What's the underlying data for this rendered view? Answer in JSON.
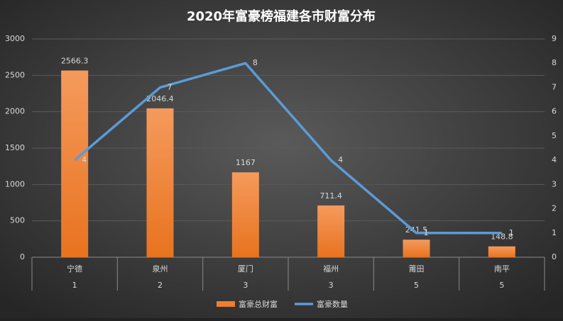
{
  "chart_data": {
    "type": "bar",
    "title": "2020年富豪榜福建各市财富分布",
    "categories": [
      "宁德",
      "泉州",
      "厦门",
      "福州",
      "莆田",
      "南平"
    ],
    "subcategories": [
      1,
      2,
      3,
      3,
      5,
      5
    ],
    "series": [
      {
        "name": "富豪总财富",
        "type": "bar",
        "color": "#ed7d31",
        "values": [
          2566.3,
          2046.4,
          1167,
          711.4,
          241.5,
          148.8
        ]
      },
      {
        "name": "富豪数量",
        "type": "line",
        "axis": "y2",
        "color": "#5b9bd5",
        "values": [
          4,
          7,
          8,
          4,
          1,
          1
        ]
      }
    ],
    "ylim": [
      0,
      3000
    ],
    "yticks": [
      0,
      500,
      1000,
      1500,
      2000,
      2500,
      3000
    ],
    "y2lim": [
      0,
      9
    ],
    "y2ticks": [
      0,
      1,
      2,
      3,
      4,
      5,
      6,
      7,
      8,
      9
    ],
    "grid": true
  }
}
